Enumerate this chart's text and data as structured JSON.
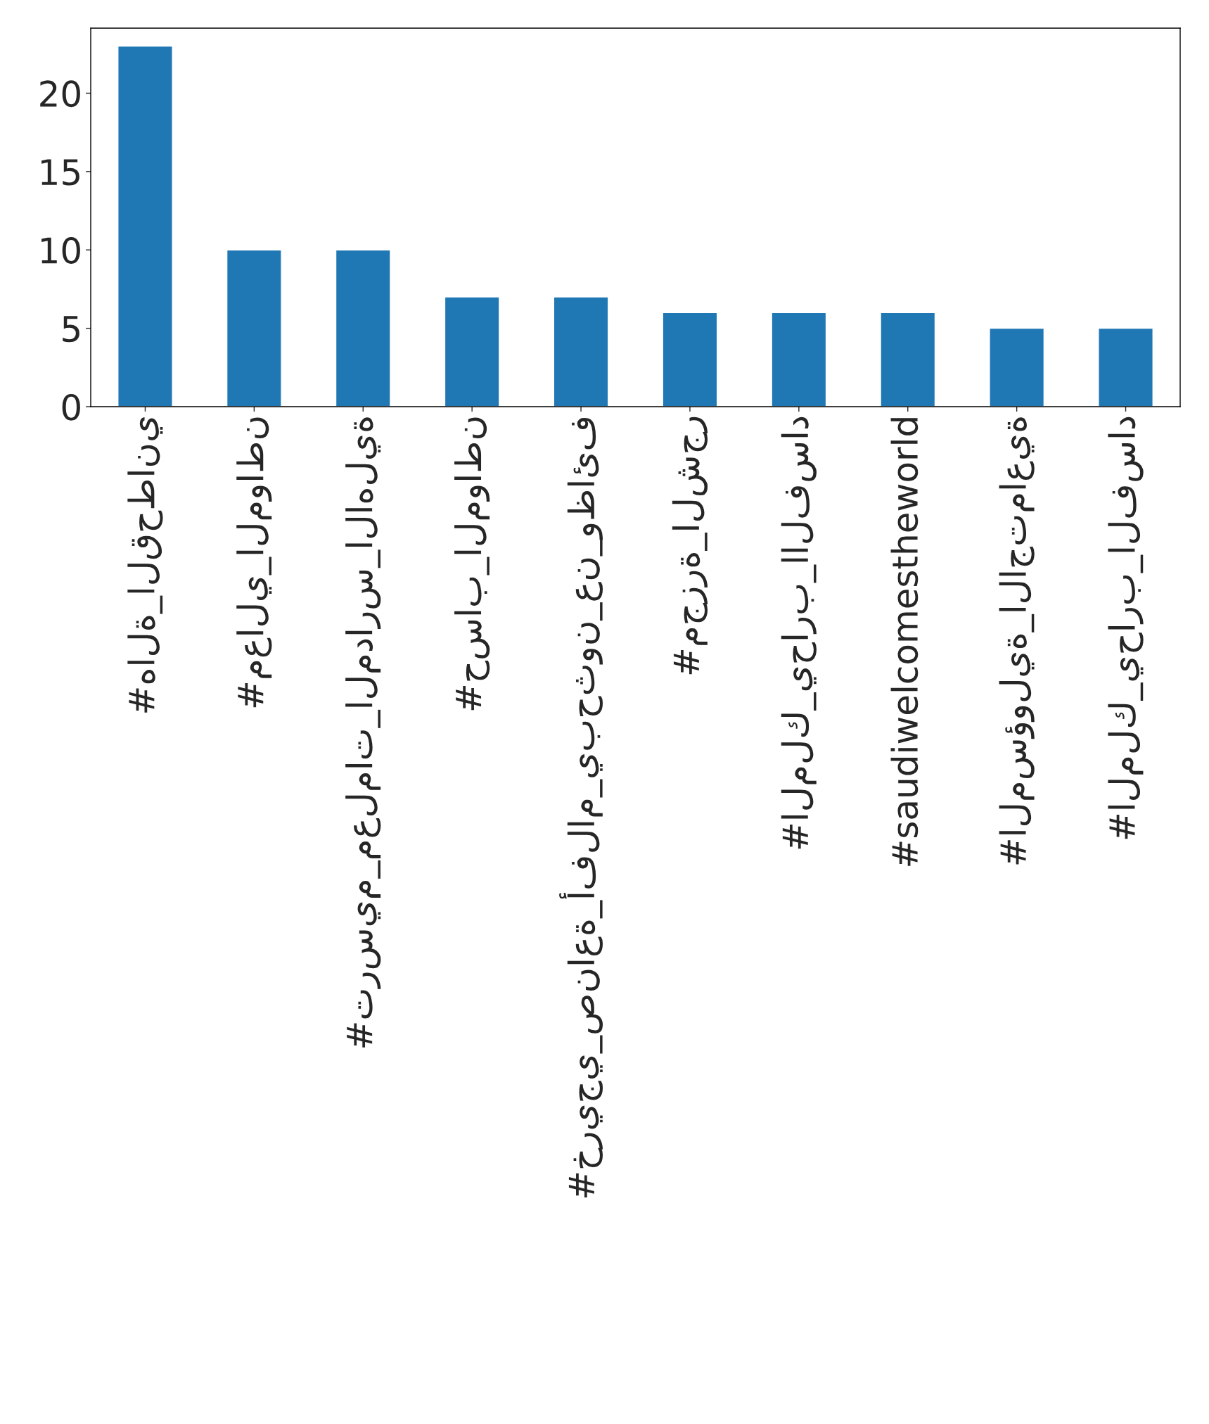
{
  "chart_data": {
    "type": "bar",
    "categories": [
      "#هالة_القحطاني",
      "#معالي_المواطن",
      "#ترسيم_معلمات_المدارس_الاهلية",
      "#حساب_المواطن",
      "#خريجي_صناعة_أفلام_يبحثون_عن_وظائف",
      "#مجزرة_الشجر",
      "#الملك_يحارب_االفساد",
      "#saudiwelcomestheworld",
      "#المسؤولية_الاجتماعية",
      "#الملك_يحارب_الفساد"
    ],
    "values": [
      23,
      10,
      10,
      7,
      7,
      6,
      6,
      6,
      5,
      5
    ],
    "color": "#1f77b4",
    "ylim": [
      0,
      24.15
    ],
    "yticks": [
      0,
      5,
      10,
      15,
      20
    ],
    "grid": false,
    "legend": false
  }
}
